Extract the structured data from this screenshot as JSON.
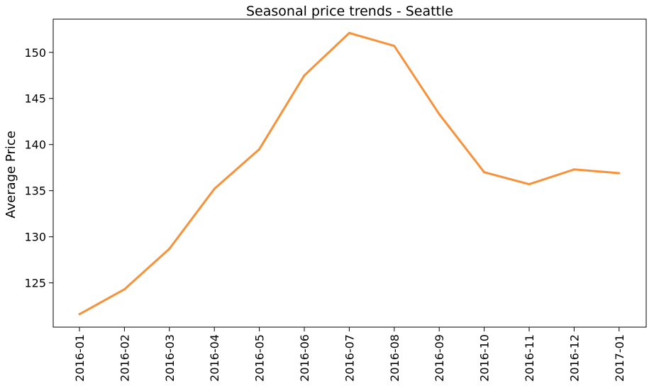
{
  "chart_data": {
    "type": "line",
    "title": "Seasonal price trends - Seattle",
    "xlabel": "",
    "ylabel": "Average Price",
    "categories": [
      "2016-01",
      "2016-02",
      "2016-03",
      "2016-04",
      "2016-05",
      "2016-06",
      "2016-07",
      "2016-08",
      "2016-09",
      "2016-10",
      "2016-11",
      "2016-12",
      "2017-01"
    ],
    "series": [
      {
        "color": "#f7923a",
        "values": [
          121.6,
          124.3,
          128.7,
          135.2,
          139.5,
          147.5,
          152.1,
          150.7,
          143.3,
          137.0,
          135.7,
          137.3,
          136.9
        ]
      }
    ],
    "ylim": [
      120.2,
      153.6
    ],
    "yticks": [
      125,
      130,
      135,
      140,
      145,
      150
    ],
    "grid": false,
    "legend": "none"
  }
}
